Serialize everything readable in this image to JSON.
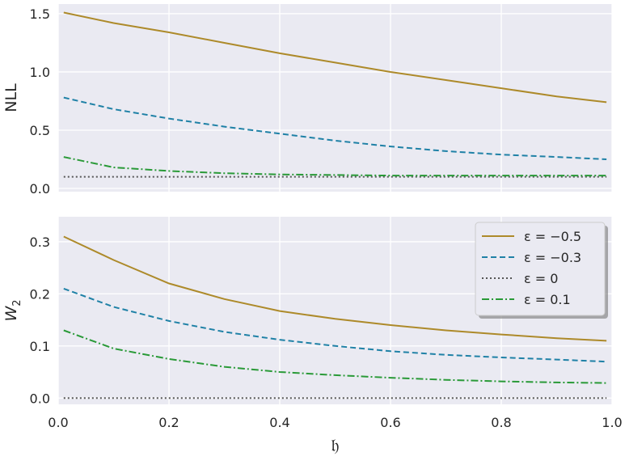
{
  "chart_data": [
    {
      "type": "line",
      "ylabel": "NLL",
      "xlabel": "",
      "xlim": [
        0,
        1
      ],
      "ylim": [
        -0.028,
        1.583
      ],
      "yticks": [
        "0.0",
        "0.5",
        "1.0",
        "1.5"
      ],
      "ytick_values": [
        0,
        0.5,
        1.0,
        1.5
      ],
      "xticks": [
        0,
        0.2,
        0.4,
        0.6,
        0.8,
        1.0
      ],
      "grid": true,
      "x": [
        0.01,
        0.1,
        0.2,
        0.3,
        0.4,
        0.5,
        0.6,
        0.7,
        0.8,
        0.9,
        0.99
      ],
      "series": [
        {
          "name": "ε = −0.5",
          "color": "#ad8a2a",
          "dash": "solid",
          "values": [
            1.51,
            1.42,
            1.34,
            1.25,
            1.16,
            1.08,
            1.0,
            0.93,
            0.86,
            0.79,
            0.74
          ]
        },
        {
          "name": "ε = −0.3",
          "color": "#1f81a6",
          "dash": "dashed",
          "values": [
            0.78,
            0.68,
            0.6,
            0.53,
            0.47,
            0.41,
            0.36,
            0.32,
            0.29,
            0.27,
            0.25
          ]
        },
        {
          "name": "ε = 0",
          "color": "#555555",
          "dash": "dotted",
          "values": [
            0.1,
            0.1,
            0.1,
            0.1,
            0.1,
            0.1,
            0.1,
            0.1,
            0.1,
            0.1,
            0.1
          ]
        },
        {
          "name": "ε = 0.1",
          "color": "#2a9a38",
          "dash": "dashdot",
          "values": [
            0.27,
            0.18,
            0.15,
            0.13,
            0.12,
            0.115,
            0.11,
            0.11,
            0.11,
            0.11,
            0.11
          ]
        }
      ]
    },
    {
      "type": "line",
      "ylabel": "W",
      "ylabel_sub": "2",
      "xlabel": "𝔥",
      "xlim": [
        0,
        1
      ],
      "ylim": [
        -0.012,
        0.348
      ],
      "yticks": [
        "0.0",
        "0.1",
        "0.2",
        "0.3"
      ],
      "ytick_values": [
        0,
        0.1,
        0.2,
        0.3
      ],
      "xticks": [
        0,
        0.2,
        0.4,
        0.6,
        0.8,
        1.0
      ],
      "xtick_labels": [
        "0.0",
        "0.2",
        "0.4",
        "0.6",
        "0.8",
        "1.0"
      ],
      "grid": true,
      "legend_position": "top-right",
      "x": [
        0.01,
        0.1,
        0.2,
        0.3,
        0.4,
        0.5,
        0.6,
        0.7,
        0.8,
        0.9,
        0.99
      ],
      "series": [
        {
          "name": "ε = −0.5",
          "color": "#ad8a2a",
          "dash": "solid",
          "values": [
            0.31,
            0.265,
            0.22,
            0.19,
            0.167,
            0.152,
            0.14,
            0.13,
            0.122,
            0.115,
            0.11
          ]
        },
        {
          "name": "ε = −0.3",
          "color": "#1f81a6",
          "dash": "dashed",
          "values": [
            0.21,
            0.175,
            0.148,
            0.127,
            0.112,
            0.1,
            0.09,
            0.083,
            0.078,
            0.074,
            0.07
          ]
        },
        {
          "name": "ε = 0",
          "color": "#555555",
          "dash": "dotted",
          "values": [
            0,
            0,
            0,
            0,
            0,
            0,
            0,
            0,
            0,
            0,
            0
          ]
        },
        {
          "name": "ε = 0.1",
          "color": "#2a9a38",
          "dash": "dashdot",
          "values": [
            0.13,
            0.095,
            0.075,
            0.06,
            0.05,
            0.044,
            0.039,
            0.035,
            0.032,
            0.03,
            0.029
          ]
        }
      ]
    }
  ]
}
